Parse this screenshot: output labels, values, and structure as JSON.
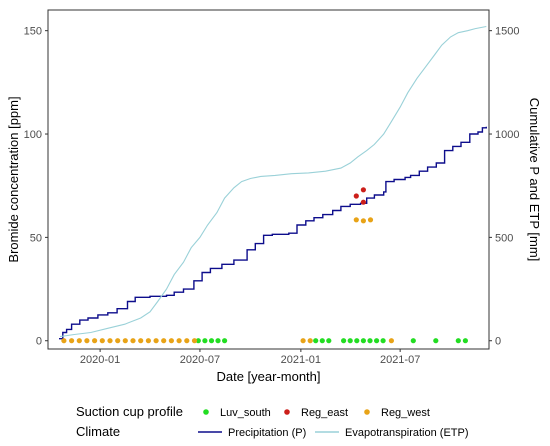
{
  "chart_data": {
    "type": "scatter",
    "xlabel": "Date [year-month]",
    "ylabel": "Bromide concentration [ppm]",
    "y2label": "Cumulative P and ETP [mm]",
    "x_range": [
      "2019-09-28",
      "2021-12-10"
    ],
    "x_ticks": [
      "2020-01",
      "2020-07",
      "2021-01",
      "2021-07"
    ],
    "y_range": [
      -4,
      160
    ],
    "y_ticks": [
      0,
      50,
      100,
      150
    ],
    "y2_range": [
      -40,
      1600
    ],
    "y2_ticks": [
      0,
      500,
      1000,
      1500
    ],
    "grid": false,
    "legend_position": "bottom",
    "legend": {
      "title": "Suction cup profile",
      "climate_title": "Climate"
    },
    "scatter_series": [
      {
        "name": "Luv_south",
        "color": "#22dd22",
        "points": [
          [
            "2020-06-28",
            0
          ],
          [
            "2020-07-10",
            0
          ],
          [
            "2020-07-22",
            0
          ],
          [
            "2020-08-03",
            0
          ],
          [
            "2020-08-15",
            0
          ],
          [
            "2021-01-28",
            0
          ],
          [
            "2021-02-09",
            0
          ],
          [
            "2021-02-21",
            0
          ],
          [
            "2021-03-20",
            0
          ],
          [
            "2021-04-01",
            0
          ],
          [
            "2021-04-13",
            0
          ],
          [
            "2021-04-25",
            0
          ],
          [
            "2021-05-07",
            0
          ],
          [
            "2021-05-19",
            0
          ],
          [
            "2021-05-31",
            0
          ],
          [
            "2021-07-25",
            0
          ],
          [
            "2021-09-04",
            0
          ],
          [
            "2021-10-15",
            0
          ],
          [
            "2021-10-28",
            0
          ]
        ]
      },
      {
        "name": "Reg_east",
        "color": "#cc1f1a",
        "points": [
          [
            "2021-04-12",
            70
          ],
          [
            "2021-04-25",
            73
          ],
          [
            "2021-04-25",
            67
          ]
        ]
      },
      {
        "name": "Reg_west",
        "color": "#e8a317",
        "points": [
          [
            "2019-10-27",
            0
          ],
          [
            "2019-11-10",
            0
          ],
          [
            "2019-11-24",
            0
          ],
          [
            "2019-12-08",
            0
          ],
          [
            "2019-12-22",
            0
          ],
          [
            "2020-01-05",
            0
          ],
          [
            "2020-01-19",
            0
          ],
          [
            "2020-02-02",
            0
          ],
          [
            "2020-02-16",
            0
          ],
          [
            "2020-03-01",
            0
          ],
          [
            "2020-03-15",
            0
          ],
          [
            "2020-03-29",
            0
          ],
          [
            "2020-04-12",
            0
          ],
          [
            "2020-04-26",
            0
          ],
          [
            "2020-05-10",
            0
          ],
          [
            "2020-05-24",
            0
          ],
          [
            "2020-06-07",
            0
          ],
          [
            "2020-06-21",
            0
          ],
          [
            "2021-01-05",
            0
          ],
          [
            "2021-01-18",
            0
          ],
          [
            "2021-04-12",
            58.5
          ],
          [
            "2021-04-25",
            58
          ],
          [
            "2021-05-08",
            58.5
          ],
          [
            "2021-06-15",
            0
          ]
        ]
      }
    ],
    "line_series": [
      {
        "name": "Precipitation (P)",
        "axis": "right",
        "color": "#0d0d8c",
        "step": true,
        "points": [
          [
            "2019-10-18",
            10
          ],
          [
            "2019-10-25",
            40
          ],
          [
            "2019-11-01",
            55
          ],
          [
            "2019-11-10",
            80
          ],
          [
            "2019-11-25",
            100
          ],
          [
            "2019-12-10",
            110
          ],
          [
            "2019-12-28",
            125
          ],
          [
            "2020-01-15",
            135
          ],
          [
            "2020-02-01",
            155
          ],
          [
            "2020-02-20",
            190
          ],
          [
            "2020-03-05",
            210
          ],
          [
            "2020-04-01",
            215
          ],
          [
            "2020-05-01",
            220
          ],
          [
            "2020-05-15",
            235
          ],
          [
            "2020-06-01",
            250
          ],
          [
            "2020-06-20",
            290
          ],
          [
            "2020-07-05",
            330
          ],
          [
            "2020-07-20",
            350
          ],
          [
            "2020-08-10",
            370
          ],
          [
            "2020-09-01",
            390
          ],
          [
            "2020-09-25",
            440
          ],
          [
            "2020-10-10",
            470
          ],
          [
            "2020-10-25",
            510
          ],
          [
            "2020-11-10",
            515
          ],
          [
            "2020-12-10",
            520
          ],
          [
            "2020-12-25",
            560
          ],
          [
            "2021-01-10",
            580
          ],
          [
            "2021-01-25",
            595
          ],
          [
            "2021-02-10",
            610
          ],
          [
            "2021-02-28",
            630
          ],
          [
            "2021-03-15",
            650
          ],
          [
            "2021-04-01",
            660
          ],
          [
            "2021-04-20",
            665
          ],
          [
            "2021-05-01",
            690
          ],
          [
            "2021-05-15",
            705
          ],
          [
            "2021-06-01",
            720
          ],
          [
            "2021-06-05",
            770
          ],
          [
            "2021-06-20",
            780
          ],
          [
            "2021-07-10",
            790
          ],
          [
            "2021-07-20",
            800
          ],
          [
            "2021-08-05",
            820
          ],
          [
            "2021-08-20",
            840
          ],
          [
            "2021-09-05",
            860
          ],
          [
            "2021-09-20",
            920
          ],
          [
            "2021-10-05",
            940
          ],
          [
            "2021-10-20",
            960
          ],
          [
            "2021-11-05",
            1000
          ],
          [
            "2021-11-20",
            1010
          ],
          [
            "2021-11-28",
            1030
          ],
          [
            "2021-12-05",
            1035
          ]
        ]
      },
      {
        "name": "Evapotranspiration (ETP)",
        "axis": "right",
        "color": "#9ad1d8",
        "step": false,
        "points": [
          [
            "2019-10-20",
            20
          ],
          [
            "2019-11-15",
            30
          ],
          [
            "2019-12-15",
            40
          ],
          [
            "2020-01-15",
            60
          ],
          [
            "2020-02-15",
            80
          ],
          [
            "2020-03-15",
            110
          ],
          [
            "2020-04-01",
            140
          ],
          [
            "2020-04-15",
            190
          ],
          [
            "2020-05-01",
            250
          ],
          [
            "2020-05-15",
            320
          ],
          [
            "2020-06-01",
            380
          ],
          [
            "2020-06-15",
            450
          ],
          [
            "2020-07-01",
            500
          ],
          [
            "2020-07-15",
            560
          ],
          [
            "2020-08-01",
            620
          ],
          [
            "2020-08-15",
            690
          ],
          [
            "2020-09-01",
            740
          ],
          [
            "2020-09-15",
            770
          ],
          [
            "2020-10-01",
            785
          ],
          [
            "2020-10-20",
            795
          ],
          [
            "2020-11-15",
            800
          ],
          [
            "2020-12-15",
            808
          ],
          [
            "2021-01-15",
            812
          ],
          [
            "2021-02-15",
            820
          ],
          [
            "2021-03-15",
            835
          ],
          [
            "2021-04-01",
            860
          ],
          [
            "2021-04-15",
            890
          ],
          [
            "2021-05-01",
            920
          ],
          [
            "2021-05-15",
            950
          ],
          [
            "2021-06-01",
            1000
          ],
          [
            "2021-06-15",
            1060
          ],
          [
            "2021-07-01",
            1130
          ],
          [
            "2021-07-15",
            1200
          ],
          [
            "2021-08-01",
            1270
          ],
          [
            "2021-08-15",
            1320
          ],
          [
            "2021-09-01",
            1380
          ],
          [
            "2021-09-15",
            1430
          ],
          [
            "2021-10-01",
            1470
          ],
          [
            "2021-10-15",
            1490
          ],
          [
            "2021-11-01",
            1500
          ],
          [
            "2021-11-15",
            1510
          ],
          [
            "2021-12-05",
            1520
          ]
        ]
      }
    ]
  }
}
